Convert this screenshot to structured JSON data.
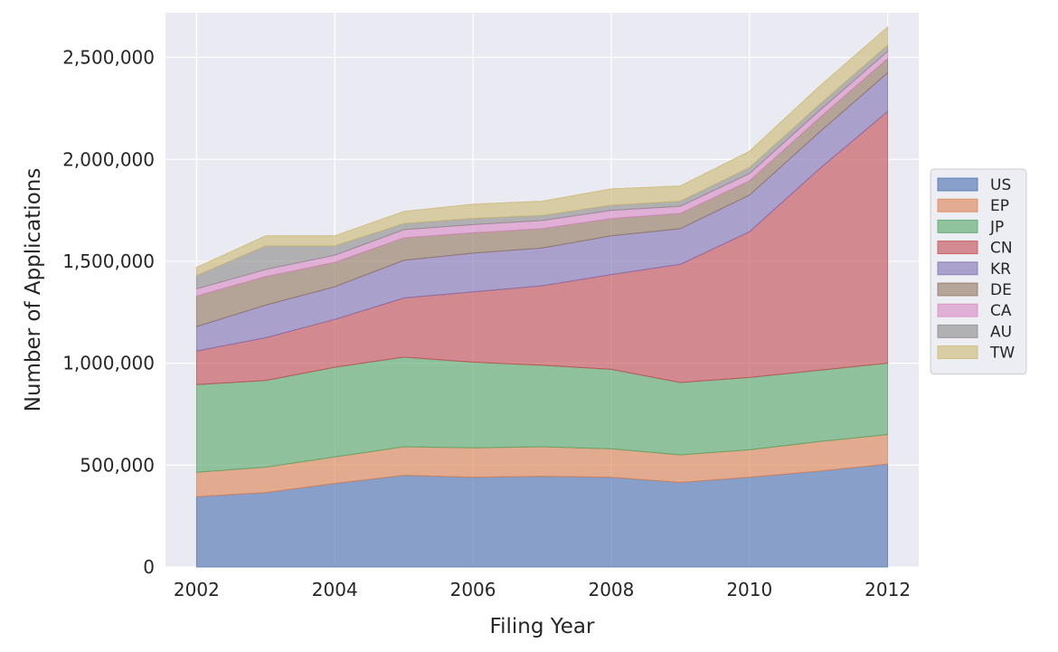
{
  "chart_data": {
    "type": "area",
    "stacked": true,
    "xlabel": "Filing Year",
    "ylabel": "Number of Applications",
    "x": [
      2002,
      2003,
      2004,
      2005,
      2006,
      2007,
      2008,
      2009,
      2010,
      2011,
      2012
    ],
    "xticks": [
      "2002",
      "2004",
      "2006",
      "2008",
      "2010",
      "2012"
    ],
    "xlim": [
      2001.55,
      2012.45
    ],
    "ylim": [
      0,
      2720000
    ],
    "yticks": [
      {
        "value": 0,
        "label": "0"
      },
      {
        "value": 500000,
        "label": "500,000"
      },
      {
        "value": 1000000,
        "label": "1,000,000"
      },
      {
        "value": 1500000,
        "label": "1,500,000"
      },
      {
        "value": 2000000,
        "label": "2,000,000"
      },
      {
        "value": 2500000,
        "label": "2,500,000"
      }
    ],
    "grid": true,
    "legend_position": "right",
    "series": [
      {
        "name": "US",
        "color": "#4c72b0",
        "values": [
          345000,
          365000,
          410000,
          450000,
          440000,
          445000,
          440000,
          415000,
          440000,
          470000,
          505000
        ]
      },
      {
        "name": "EP",
        "color": "#dd8452",
        "values": [
          120000,
          125000,
          130000,
          140000,
          145000,
          145000,
          140000,
          135000,
          135000,
          145000,
          145000
        ]
      },
      {
        "name": "JP",
        "color": "#55a868",
        "values": [
          430000,
          425000,
          440000,
          440000,
          420000,
          400000,
          390000,
          355000,
          355000,
          350000,
          350000
        ]
      },
      {
        "name": "CN",
        "color": "#c44e52",
        "values": [
          165000,
          210000,
          235000,
          290000,
          345000,
          390000,
          465000,
          580000,
          715000,
          985000,
          1235000
        ]
      },
      {
        "name": "KR",
        "color": "#8172b3",
        "values": [
          120000,
          160000,
          160000,
          185000,
          190000,
          185000,
          190000,
          175000,
          180000,
          180000,
          190000
        ]
      },
      {
        "name": "DE",
        "color": "#937860",
        "values": [
          150000,
          140000,
          120000,
          110000,
          100000,
          95000,
          85000,
          75000,
          70000,
          70000,
          70000
        ]
      },
      {
        "name": "CA",
        "color": "#da8bc3",
        "values": [
          35000,
          35000,
          35000,
          40000,
          40000,
          40000,
          40000,
          35000,
          35000,
          35000,
          35000
        ]
      },
      {
        "name": "AU",
        "color": "#8c8c8c",
        "values": [
          65000,
          115000,
          45000,
          30000,
          30000,
          25000,
          25000,
          25000,
          30000,
          30000,
          30000
        ]
      },
      {
        "name": "TW",
        "color": "#ccb974",
        "values": [
          40000,
          50000,
          50000,
          60000,
          70000,
          70000,
          80000,
          75000,
          80000,
          90000,
          90000
        ]
      }
    ]
  }
}
